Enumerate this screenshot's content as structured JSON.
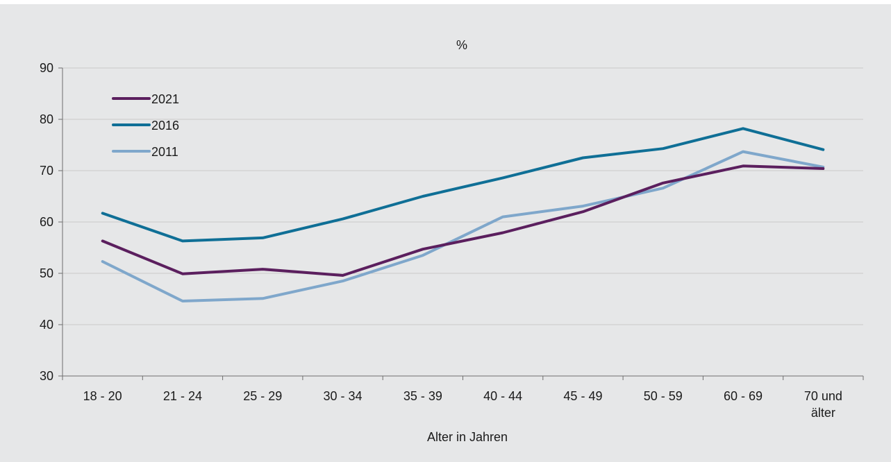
{
  "chart_data": {
    "type": "line",
    "title": "",
    "ylabel": "%",
    "xlabel": "Alter in Jahren",
    "ylim": [
      30,
      90
    ],
    "yticks": [
      30,
      40,
      50,
      60,
      70,
      80,
      90
    ],
    "grid": true,
    "legend_position": "top-left",
    "categories": [
      "18 - 20",
      "21 - 24",
      "25 - 29",
      "30 - 34",
      "35 - 39",
      "40 - 44",
      "45 - 49",
      "50 - 59",
      "60 - 69",
      "70 und älter"
    ],
    "series": [
      {
        "name": "2021",
        "color": "#5b1f5e",
        "values": [
          56.3,
          49.9,
          50.8,
          49.6,
          54.7,
          57.9,
          62.0,
          67.6,
          70.9,
          70.4
        ]
      },
      {
        "name": "2016",
        "color": "#0f6f96",
        "values": [
          61.7,
          56.3,
          56.9,
          60.6,
          65.0,
          68.6,
          72.5,
          74.3,
          78.2,
          74.1
        ]
      },
      {
        "name": "2011",
        "color": "#7fa7cb",
        "values": [
          52.3,
          44.6,
          45.1,
          48.5,
          53.5,
          61.0,
          63.1,
          66.6,
          73.7,
          70.7
        ]
      }
    ]
  }
}
